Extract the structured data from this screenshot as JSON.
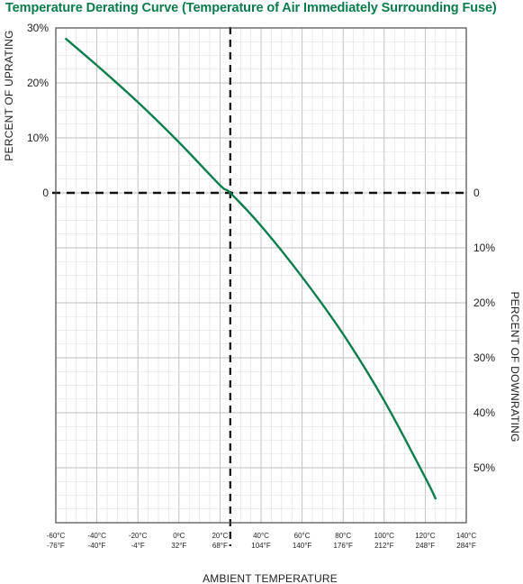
{
  "title": "Temperature Derating Curve (Temperature of Air Immediately Surrounding Fuse)",
  "colors": {
    "title": "#0a7c4a",
    "curve": "#0c7d4b",
    "grid_minor": "#dcdcdc",
    "grid_major": "#bdbdbd",
    "frame": "#4a4a4a",
    "reference_lines": "#111111",
    "text": "#222222"
  },
  "chart_data": {
    "type": "line",
    "title": "Temperature Derating Curve (Temperature of Air Immediately Surrounding Fuse)",
    "xlabel": "AMBIENT TEMPERATURE",
    "ylabel_left": "PERCENT OF UPRATING",
    "ylabel_right": "PERCENT OF DOWNRATING",
    "x_unit": "°C",
    "xlim": [
      -60,
      140
    ],
    "ylim": [
      -60,
      30
    ],
    "x_ticks": [
      {
        "c": "-60°C",
        "f": "-76°F"
      },
      {
        "c": "-40°C",
        "f": "-40°F"
      },
      {
        "c": "-20°C",
        "f": "-4°F"
      },
      {
        "c": "0ºC",
        "f": "32°F"
      },
      {
        "c": "20°C",
        "f": "68°F"
      },
      {
        "c": "40°C",
        "f": "104°F"
      },
      {
        "c": "60°C",
        "f": "140°F"
      },
      {
        "c": "80°C",
        "f": "176°F"
      },
      {
        "c": "100°C",
        "f": "212°F"
      },
      {
        "c": "120°C",
        "f": "248°F"
      },
      {
        "c": "140°C",
        "f": "284°F"
      }
    ],
    "left_ticks": [
      "30%",
      "20%",
      "10%",
      "0"
    ],
    "right_ticks": [
      "0",
      "10%",
      "20%",
      "30%",
      "40%",
      "50%"
    ],
    "reference_lines": {
      "x": 25,
      "y": 0
    },
    "grid": true,
    "series": [
      {
        "x": [
          -55,
          -40,
          -20,
          0,
          20,
          25,
          40,
          60,
          80,
          100,
          120,
          125
        ],
        "y": [
          28,
          23.2,
          16.5,
          9.2,
          1.4,
          0,
          -6,
          -15.3,
          -25.7,
          -37.8,
          -51.8,
          -55.6
        ]
      }
    ]
  }
}
